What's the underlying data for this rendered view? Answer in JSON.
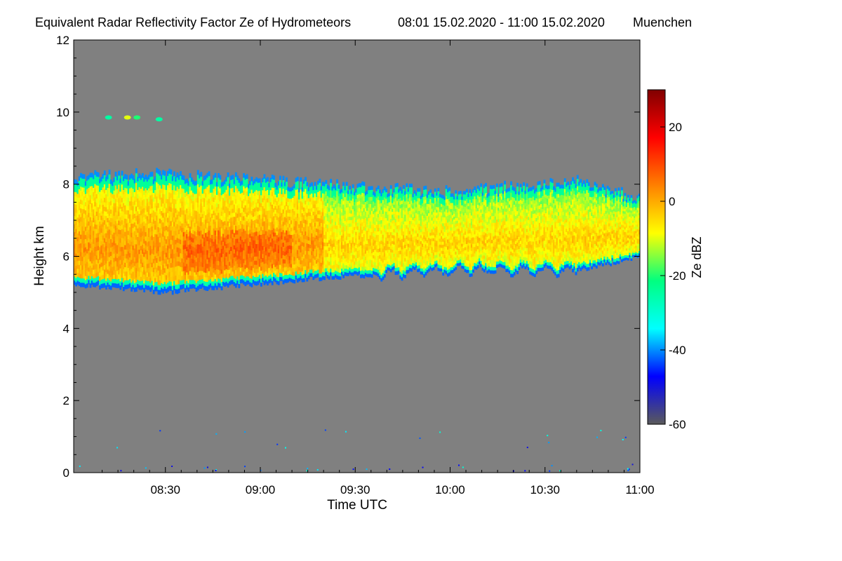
{
  "chart_data": {
    "type": "heatmap",
    "title": "Equivalent Radar Reflectivity Factor Ze of Hydrometeors",
    "period": "08:01 15.02.2020 - 11:00 15.02.2020",
    "location": "Muenchen",
    "xlabel": "Time UTC",
    "ylabel": "Height km",
    "colorbar_label": "Ze dBZ",
    "xlim_min": [
      481,
      660
    ],
    "ylim": [
      0,
      12
    ],
    "x_ticks": [
      {
        "value": 510,
        "label": "08:30"
      },
      {
        "value": 540,
        "label": "09:00"
      },
      {
        "value": 570,
        "label": "09:30"
      },
      {
        "value": 600,
        "label": "10:00"
      },
      {
        "value": 630,
        "label": "10:30"
      },
      {
        "value": 660,
        "label": "11:00"
      }
    ],
    "y_ticks": [
      {
        "value": 0,
        "label": "0"
      },
      {
        "value": 2,
        "label": "2"
      },
      {
        "value": 4,
        "label": "4"
      },
      {
        "value": 6,
        "label": "6"
      },
      {
        "value": 8,
        "label": "8"
      },
      {
        "value": 10,
        "label": "10"
      },
      {
        "value": 12,
        "label": "12"
      }
    ],
    "colorbar_range": [
      -60,
      30
    ],
    "colorbar_ticks": [
      {
        "value": 20,
        "label": "20"
      },
      {
        "value": 0,
        "label": "0"
      },
      {
        "value": -20,
        "label": "-20"
      },
      {
        "value": -40,
        "label": "-40"
      },
      {
        "value": -60,
        "label": "-60"
      }
    ],
    "colormap": [
      "#5a5a5a",
      "#0000ff",
      "#00ffff",
      "#00ff80",
      "#ffff00",
      "#ff8000",
      "#ff0000",
      "#800000"
    ],
    "no_signal_color": "#808080",
    "cloud_layer": {
      "base_km": [
        5.2,
        5.0,
        5.4,
        5.6,
        5.6,
        6.0
      ],
      "top_km": [
        8.2,
        8.3,
        8.0,
        7.8,
        8.1,
        7.6
      ],
      "base_times_min": [
        481,
        510,
        560,
        600,
        640,
        660
      ],
      "peak_dbz": 5,
      "mean_dbz": -10
    },
    "upper_echoes": [
      {
        "t": 492,
        "h": 9.85,
        "dbz": -25
      },
      {
        "t": 498,
        "h": 9.85,
        "dbz": -10
      },
      {
        "t": 501,
        "h": 9.85,
        "dbz": -20
      },
      {
        "t": 508,
        "h": 9.8,
        "dbz": -25
      }
    ]
  }
}
